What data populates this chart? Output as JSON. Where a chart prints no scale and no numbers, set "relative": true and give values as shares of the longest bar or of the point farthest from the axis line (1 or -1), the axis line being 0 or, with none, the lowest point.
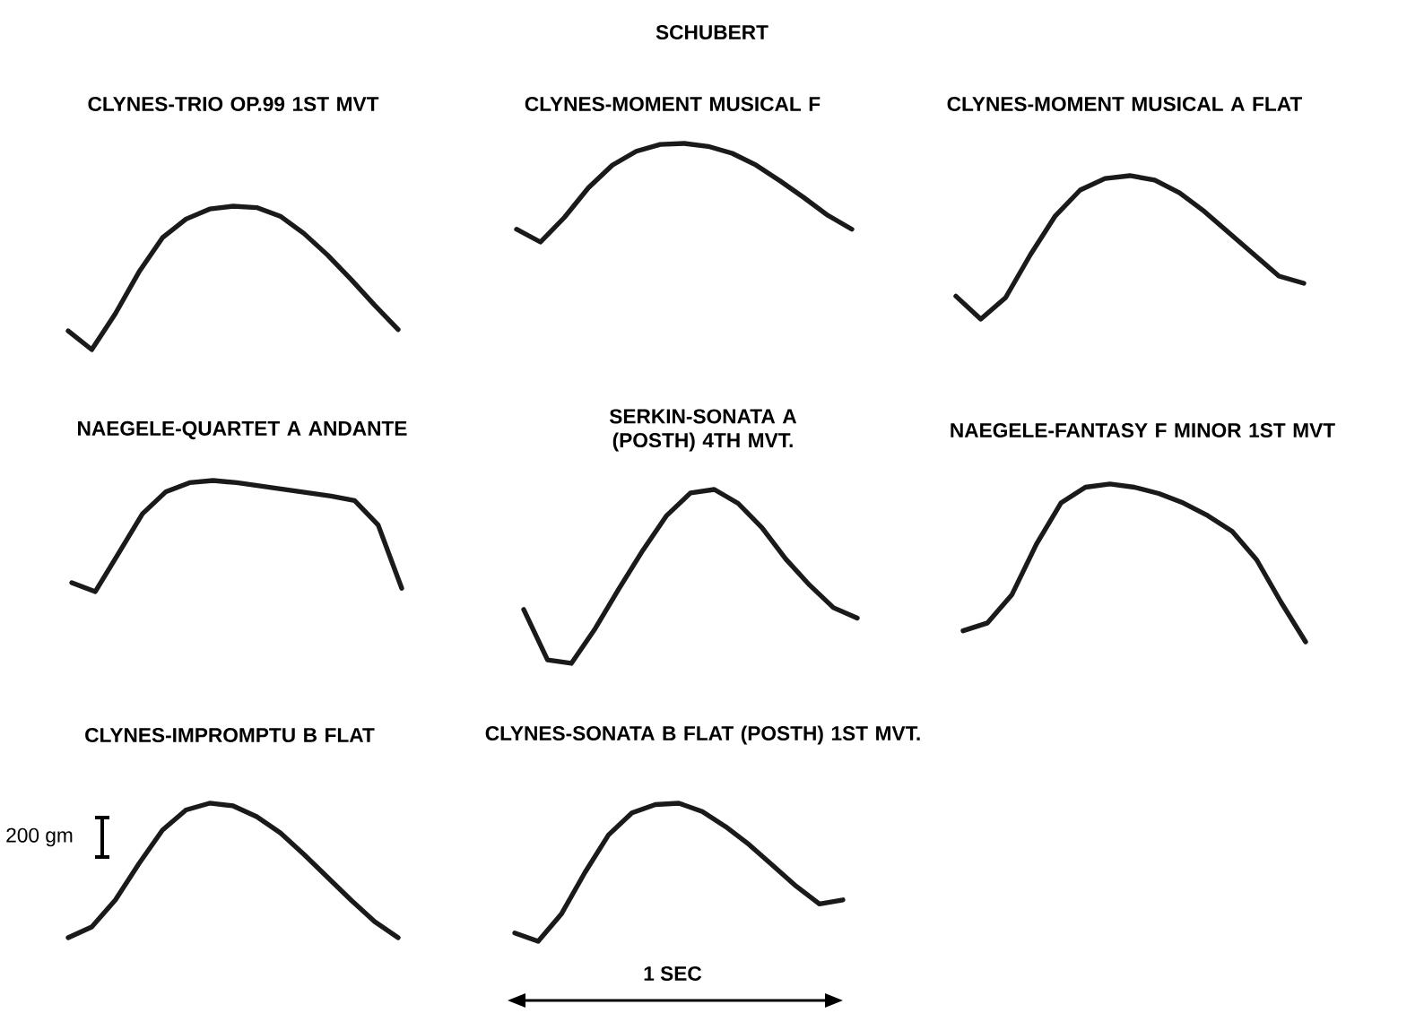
{
  "chart_data": [
    {
      "type": "line",
      "title": "CLYNES-TRIO OP.99 1ST MVT",
      "annotations": [
        "SCHUBERT"
      ],
      "relative": true,
      "color": "#1a1a1a",
      "categories": [
        null,
        null,
        null,
        null,
        null,
        null,
        null,
        null,
        null,
        null,
        null,
        null,
        null,
        null,
        null
      ],
      "values": [
        0.13,
        0.0,
        0.25,
        0.54,
        0.78,
        0.91,
        0.98,
        1.0,
        0.99,
        0.93,
        0.81,
        0.66,
        0.49,
        0.31,
        0.14
      ]
    },
    {
      "type": "line",
      "title": "CLYNES-MOMENT MUSICAL F",
      "relative": true,
      "color": "#1a1a1a",
      "categories": [
        null,
        null,
        null,
        null,
        null,
        null,
        null,
        null,
        null,
        null,
        null,
        null,
        null,
        null,
        null
      ],
      "values": [
        0.13,
        0.0,
        0.25,
        0.55,
        0.78,
        0.92,
        0.99,
        1.0,
        0.97,
        0.9,
        0.78,
        0.62,
        0.45,
        0.27,
        0.13
      ]
    },
    {
      "type": "line",
      "title": "CLYNES-MOMENT MUSICAL A FLAT",
      "relative": true,
      "color": "#1a1a1a",
      "categories": [
        null,
        null,
        null,
        null,
        null,
        null,
        null,
        null,
        null,
        null,
        null,
        null,
        null,
        null,
        null
      ],
      "values": [
        0.16,
        0.0,
        0.15,
        0.45,
        0.72,
        0.9,
        0.98,
        1.0,
        0.97,
        0.88,
        0.75,
        0.6,
        0.45,
        0.3,
        0.25
      ]
    },
    {
      "type": "line",
      "title": "NAEGELE-QUARTET A ANDANTE",
      "relative": true,
      "color": "#1a1a1a",
      "categories": [
        null,
        null,
        null,
        null,
        null,
        null,
        null,
        null,
        null,
        null,
        null,
        null,
        null,
        null,
        null
      ],
      "values": [
        0.08,
        0.0,
        0.35,
        0.7,
        0.9,
        0.98,
        1.0,
        0.98,
        0.95,
        0.92,
        0.89,
        0.86,
        0.82,
        0.6,
        0.03
      ]
    },
    {
      "type": "line",
      "title": "SERKIN-SONATA A (POSTH) 4TH MVT.",
      "relative": true,
      "color": "#1a1a1a",
      "categories": [
        null,
        null,
        null,
        null,
        null,
        null,
        null,
        null,
        null,
        null,
        null,
        null,
        null,
        null,
        null
      ],
      "values": [
        0.31,
        0.02,
        0.0,
        0.2,
        0.43,
        0.65,
        0.85,
        0.98,
        1.0,
        0.92,
        0.78,
        0.6,
        0.45,
        0.32,
        0.26
      ]
    },
    {
      "type": "line",
      "title": "NAEGELE-FANTASY F MINOR 1ST MVT",
      "relative": true,
      "color": "#1a1a1a",
      "categories": [
        null,
        null,
        null,
        null,
        null,
        null,
        null,
        null,
        null,
        null,
        null,
        null,
        null,
        null,
        null
      ],
      "values": [
        0.07,
        0.12,
        0.3,
        0.62,
        0.88,
        0.98,
        1.0,
        0.98,
        0.94,
        0.88,
        0.8,
        0.7,
        0.52,
        0.25,
        0.0
      ]
    },
    {
      "type": "line",
      "title": "CLYNES-IMPROMPTU B FLAT",
      "annotations": [
        "200 gm"
      ],
      "relative": true,
      "color": "#1a1a1a",
      "categories": [
        null,
        null,
        null,
        null,
        null,
        null,
        null,
        null,
        null,
        null,
        null,
        null,
        null,
        null,
        null
      ],
      "values": [
        0.0,
        0.08,
        0.28,
        0.55,
        0.8,
        0.95,
        1.0,
        0.98,
        0.9,
        0.78,
        0.62,
        0.45,
        0.28,
        0.12,
        0.0
      ]
    },
    {
      "type": "line",
      "title": "CLYNES-SONATA B FLAT (POSTH) 1ST MVT.",
      "annotations": [
        "1 SEC"
      ],
      "relative": true,
      "color": "#1a1a1a",
      "categories": [
        null,
        null,
        null,
        null,
        null,
        null,
        null,
        null,
        null,
        null,
        null,
        null,
        null,
        null,
        null
      ],
      "values": [
        0.06,
        0.0,
        0.2,
        0.5,
        0.77,
        0.93,
        0.99,
        1.0,
        0.94,
        0.83,
        0.7,
        0.55,
        0.4,
        0.27,
        0.3
      ]
    }
  ]
}
